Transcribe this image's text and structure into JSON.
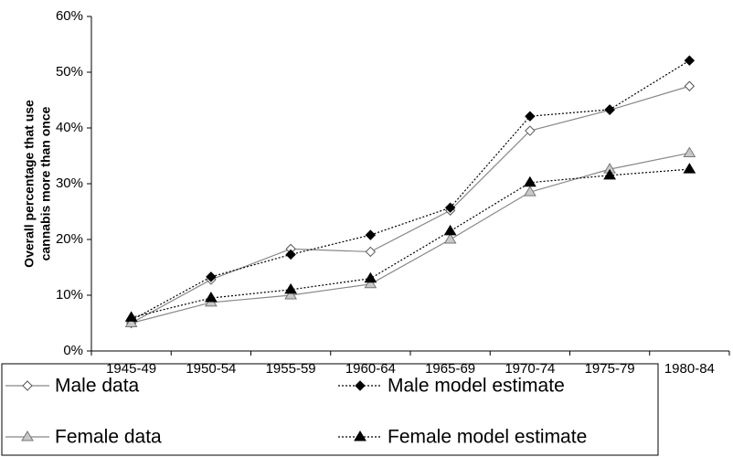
{
  "chart_data": {
    "type": "line",
    "y_label": [
      "Overall percentage that use",
      "cannabis more than once"
    ],
    "categories": [
      "1945-49",
      "1950-54",
      "1955-59",
      "1960-64",
      "1965-69",
      "1970-74",
      "1975-79",
      "1980-84"
    ],
    "series": [
      {
        "name": "Male data",
        "color": "#888888",
        "line_style": "solid",
        "marker": "diamond",
        "marker_fill": "#ffffff",
        "marker_stroke": "#555555",
        "values": [
          5,
          12.8,
          18.3,
          17.8,
          25.2,
          39.5,
          43.2,
          47.5
        ]
      },
      {
        "name": "Male model estimate",
        "color": "#000000",
        "line_style": "dotted",
        "marker": "diamond",
        "marker_fill": "#000000",
        "marker_stroke": "#000000",
        "values": [
          5.5,
          13.3,
          17.3,
          20.8,
          25.7,
          42.1,
          43.3,
          52.1
        ]
      },
      {
        "name": "Female data",
        "color": "#888888",
        "line_style": "solid",
        "marker": "triangle",
        "marker_fill": "#c8c8c8",
        "marker_stroke": "#777777",
        "values": [
          5,
          8.7,
          10,
          12,
          20,
          28.5,
          32.6,
          35.5
        ]
      },
      {
        "name": "Female model estimate",
        "color": "#000000",
        "line_style": "dotted",
        "marker": "triangle",
        "marker_fill": "#000000",
        "marker_stroke": "#000000",
        "values": [
          6,
          9.5,
          11,
          13,
          21.5,
          30.2,
          31.5,
          32.6
        ]
      }
    ],
    "ylim": [
      0,
      60
    ],
    "yticks": [
      {
        "value": 0,
        "label": "0%"
      },
      {
        "value": 10,
        "label": "10%"
      },
      {
        "value": 20,
        "label": "20%"
      },
      {
        "value": 30,
        "label": "30%"
      },
      {
        "value": 40,
        "label": "40%"
      },
      {
        "value": 50,
        "label": "50%"
      },
      {
        "value": 60,
        "label": "60%"
      }
    ],
    "grid": false
  }
}
